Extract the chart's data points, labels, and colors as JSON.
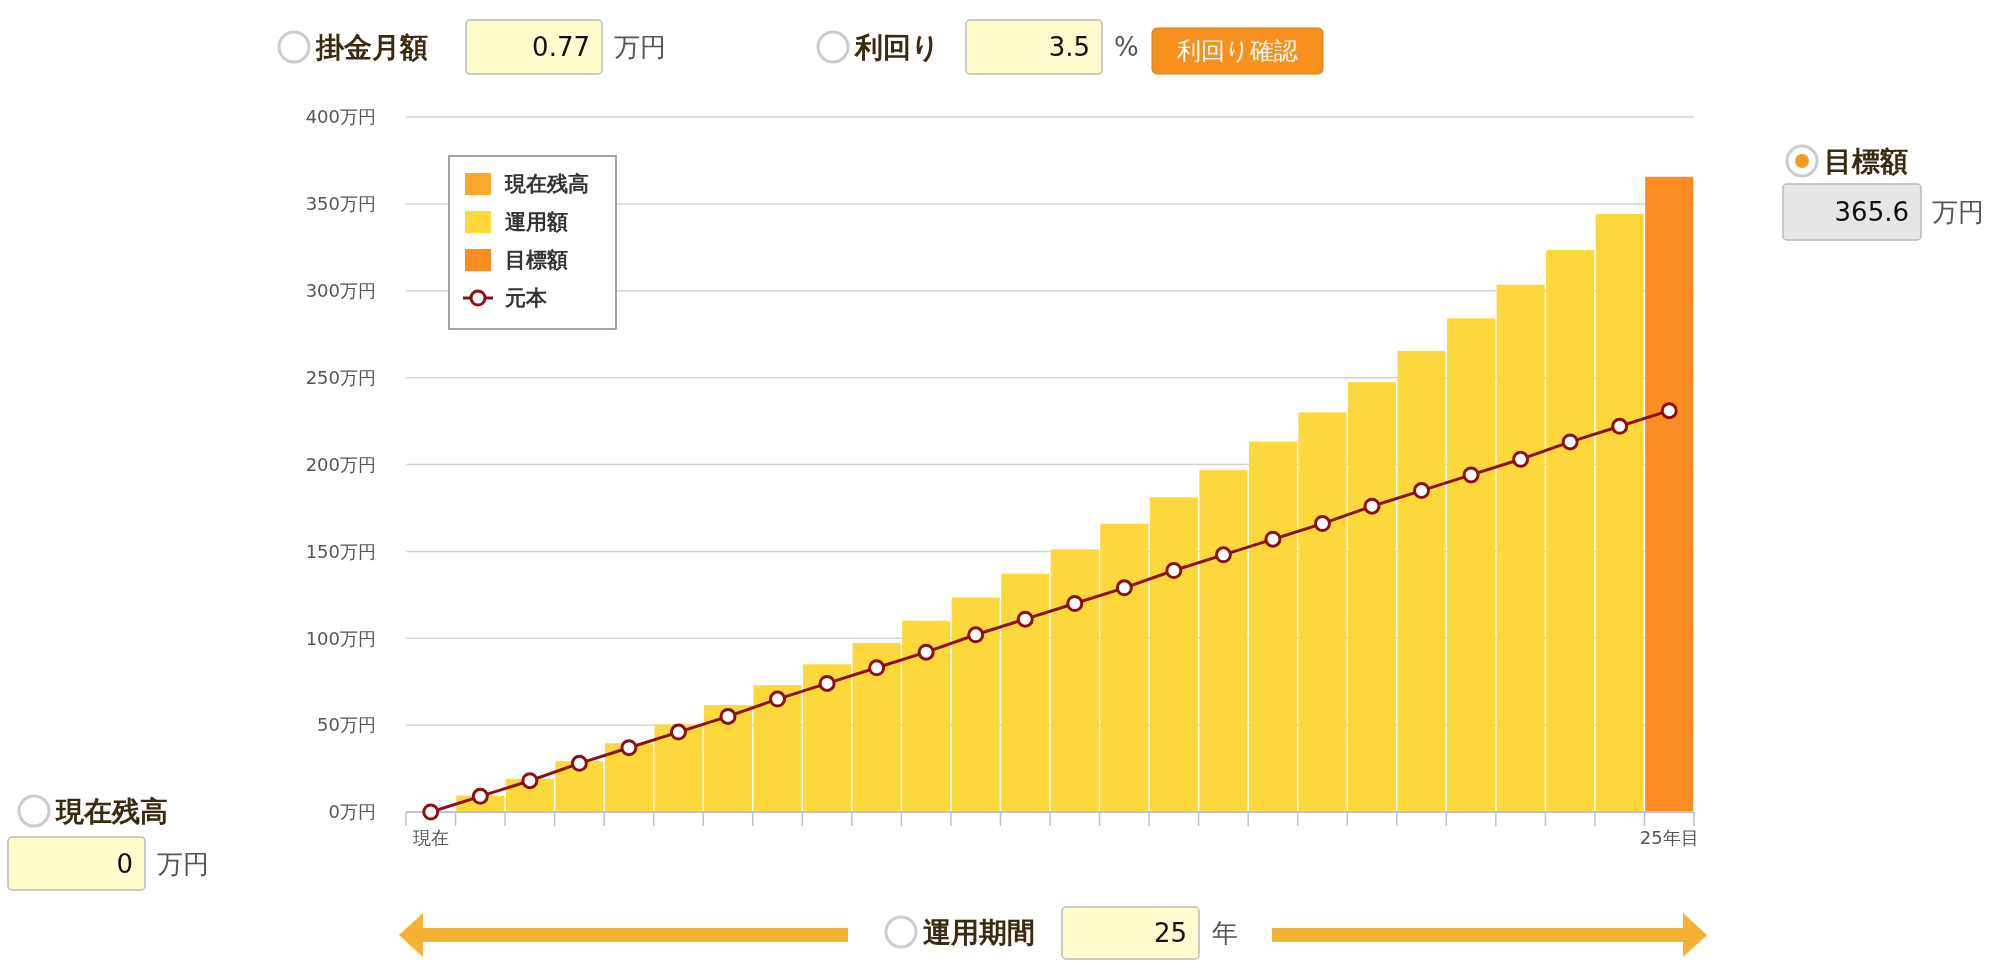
{
  "chart_data": {
    "type": "bar",
    "stacked": true,
    "categories": [
      "現在",
      null,
      null,
      null,
      null,
      null,
      null,
      null,
      null,
      null,
      null,
      null,
      null,
      null,
      null,
      null,
      null,
      null,
      null,
      null,
      null,
      null,
      null,
      null,
      null,
      "25年目"
    ],
    "series": [
      {
        "name": "現在残高",
        "color": "#fba92c",
        "values": [
          0,
          0,
          0,
          0,
          0,
          0,
          0,
          0,
          0,
          0,
          0,
          0,
          0,
          0,
          0,
          0,
          0,
          0,
          0,
          0,
          0,
          0,
          0,
          0,
          0,
          0
        ]
      },
      {
        "name": "運用額",
        "color": "#fdd83c",
        "values": [
          0,
          9.4,
          19.1,
          29.2,
          39.6,
          50.3,
          61.5,
          73,
          85,
          97.3,
          110.1,
          123.4,
          137.1,
          151.2,
          165.9,
          181.1,
          196.8,
          213.1,
          230,
          247.4,
          265.4,
          284.1,
          303.4,
          323.4,
          344.2,
          null
        ]
      },
      {
        "name": "目標額",
        "color": "#fb8c23",
        "values": [
          null,
          null,
          null,
          null,
          null,
          null,
          null,
          null,
          null,
          null,
          null,
          null,
          null,
          null,
          null,
          null,
          null,
          null,
          null,
          null,
          null,
          null,
          null,
          null,
          null,
          365.6
        ]
      },
      {
        "name": "元本",
        "type": "line",
        "color": "#8b1010",
        "values": [
          0,
          9,
          18,
          28,
          37,
          46,
          55,
          65,
          74,
          83,
          92,
          102,
          111,
          120,
          129,
          139,
          148,
          157,
          166,
          176,
          185,
          194,
          203,
          213,
          222,
          231
        ]
      }
    ],
    "marker": "circle",
    "line_style": "solid",
    "ylim": [
      0,
      400
    ],
    "yticks": [
      {
        "value": 0,
        "label": "0万円"
      },
      {
        "value": 50,
        "label": "50万円"
      },
      {
        "value": 100,
        "label": "100万円"
      },
      {
        "value": 150,
        "label": "150万円"
      },
      {
        "value": 200,
        "label": "200万円"
      },
      {
        "value": 250,
        "label": "250万円"
      },
      {
        "value": 300,
        "label": "300万円"
      },
      {
        "value": 350,
        "label": "350万円"
      },
      {
        "value": 400,
        "label": "400万円"
      }
    ],
    "grid": "y",
    "legend": "top left",
    "annotations": [
      "掛金月額",
      "0.77",
      "万円",
      "利回り",
      "3.5",
      "%",
      "利回り確認",
      "目標額",
      "365.6",
      "万円",
      "現在残高",
      "0",
      "万円",
      "運用期間",
      "25",
      "年"
    ]
  }
}
